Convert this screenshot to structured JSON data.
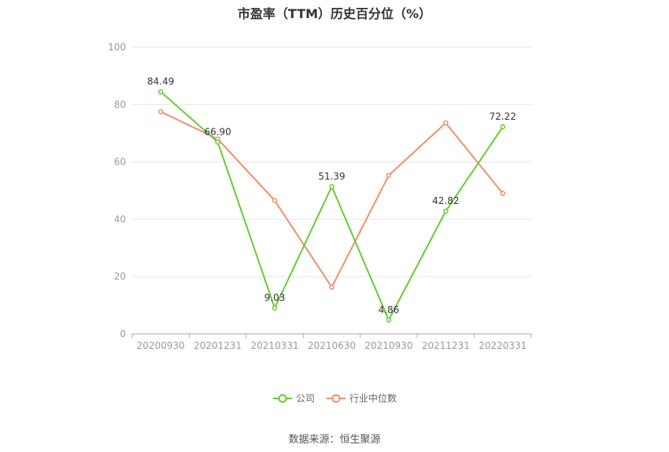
{
  "chart_data": {
    "type": "line",
    "title": "市盈率（TTM）历史百分位（%）",
    "categories": [
      "20200930",
      "20201231",
      "20210331",
      "20210630",
      "20210930",
      "20211231",
      "20220331"
    ],
    "series": [
      {
        "name": "公司",
        "color": "#66cc33",
        "values": [
          84.49,
          66.9,
          9.03,
          51.39,
          4.86,
          42.82,
          72.22
        ],
        "labels": [
          "84.49",
          "66.90",
          "9.03",
          "51.39",
          "4.86",
          "42.82",
          "72.22"
        ]
      },
      {
        "name": "行业中位数",
        "color": "#f0906a",
        "values": [
          77.5,
          68.0,
          46.5,
          16.3,
          55.3,
          73.6,
          49.0
        ]
      }
    ],
    "ylim": [
      0,
      100
    ],
    "yticks": [
      "0",
      "20",
      "40",
      "60",
      "80",
      "100"
    ],
    "grid": true,
    "legend_position": "bottom"
  },
  "source": "数据来源：恒生聚源"
}
